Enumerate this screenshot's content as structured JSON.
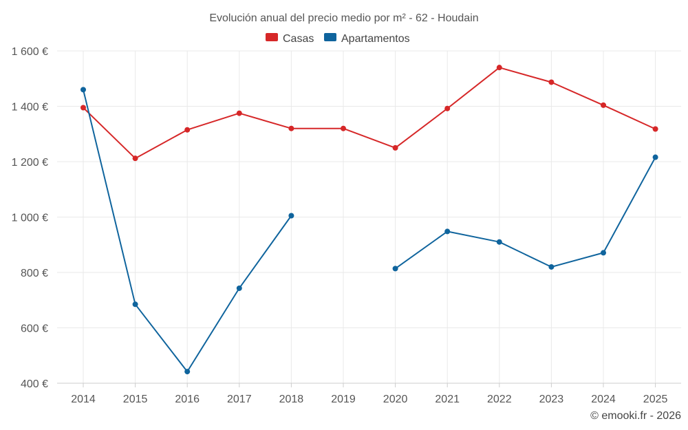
{
  "chart_data": {
    "type": "line",
    "title": "Evolución anual del precio medio por m² - 62 - Houdain",
    "categories": [
      "2014",
      "2015",
      "2016",
      "2017",
      "2018",
      "2019",
      "2020",
      "2021",
      "2022",
      "2023",
      "2024",
      "2025"
    ],
    "ylim": [
      400,
      1600
    ],
    "yticks": [
      400,
      600,
      800,
      1000,
      1200,
      1400,
      1600
    ],
    "ytick_labels": [
      "400 €",
      "600 €",
      "800 €",
      "1 000 €",
      "1 200 €",
      "1 400 €",
      "1 600 €"
    ],
    "grid": true,
    "legend_position": "top-center",
    "series": [
      {
        "name": "Casas",
        "color": "#d62728",
        "values": [
          1395,
          1212,
          1315,
          1375,
          1320,
          1320,
          1250,
          1392,
          1540,
          1487,
          1404,
          1318
        ]
      },
      {
        "name": "Apartamentos",
        "color": "#0f649d",
        "values": [
          1460,
          685,
          442,
          743,
          1005,
          null,
          814,
          948,
          910,
          820,
          871,
          1216
        ]
      }
    ]
  },
  "credit": "© emooki.fr - 2026"
}
